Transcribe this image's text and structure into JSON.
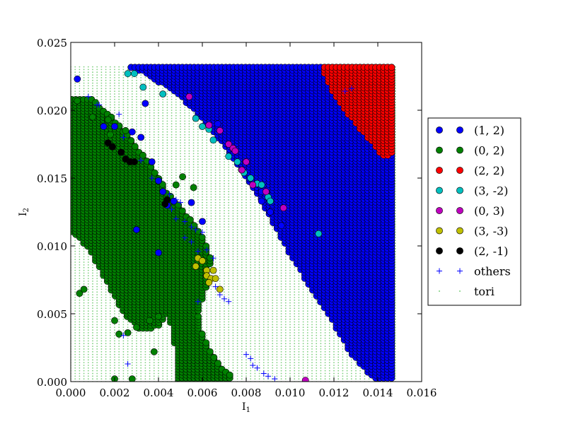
{
  "chart_data": {
    "type": "scatter",
    "title": "",
    "xlabel": "I",
    "xlabel_sub": "1",
    "ylabel": "I",
    "ylabel_sub": "2",
    "xlim": [
      0.0,
      0.016
    ],
    "ylim": [
      0.0,
      0.025
    ],
    "x_ticks": [
      "0.000",
      "0.002",
      "0.004",
      "0.006",
      "0.008",
      "0.010",
      "0.012",
      "0.014",
      "0.016"
    ],
    "y_ticks": [
      "0.000",
      "0.005",
      "0.010",
      "0.015",
      "0.020",
      "0.025"
    ],
    "grid": false,
    "legend_position": "outside-right",
    "colors": {
      "s12": "#0000ff",
      "s02": "#008000",
      "s22": "#ff0000",
      "s3m2": "#00bfbf",
      "s03": "#bf00bf",
      "s3m3": "#bfbf00",
      "s2m1": "#000000",
      "others": "#0000ff",
      "tori": "#7fd07f"
    },
    "tori_grid": {
      "x_step": 0.0002,
      "y_step": 0.0002,
      "x_max": 0.0148,
      "y_max": 0.0232
    },
    "series": [
      {
        "name": "(1, 2)",
        "key": "s12",
        "marker": "circle",
        "region": [
          [
            0.0027,
            0.0232
          ],
          [
            0.0147,
            0.0232
          ],
          [
            0.0147,
            0.0002
          ],
          [
            0.0138,
            0.0002
          ],
          [
            0.0128,
            0.002
          ],
          [
            0.0118,
            0.0048
          ],
          [
            0.0108,
            0.0072
          ],
          [
            0.0096,
            0.0105
          ],
          [
            0.0086,
            0.0135
          ],
          [
            0.0074,
            0.0165
          ],
          [
            0.0062,
            0.019
          ],
          [
            0.005,
            0.021
          ],
          [
            0.0036,
            0.0225
          ]
        ],
        "points": [
          [
            0.0003,
            0.0223
          ],
          [
            0.0034,
            0.0205
          ],
          [
            0.0028,
            0.0184
          ],
          [
            0.0032,
            0.018
          ],
          [
            0.0015,
            0.0188
          ],
          [
            0.0037,
            0.0162
          ],
          [
            0.004,
            0.0148
          ],
          [
            0.0042,
            0.014
          ],
          [
            0.0047,
            0.0133
          ],
          [
            0.0055,
            0.0132
          ],
          [
            0.006,
            0.0118
          ],
          [
            0.003,
            0.0112
          ],
          [
            0.004,
            0.0095
          ],
          [
            0.002,
            0.0188
          ],
          [
            0.0044,
            0.013
          ],
          [
            0.0087,
            0.014
          ],
          [
            0.0091,
            0.0125
          ],
          [
            0.0096,
            0.0115
          ],
          [
            0.0087,
            0.0133
          ],
          [
            0.0067,
            0.019
          ]
        ]
      },
      {
        "name": "(0, 2)",
        "key": "s02",
        "marker": "circle",
        "region": [
          [
            0.0,
            0.021
          ],
          [
            0.001,
            0.0208
          ],
          [
            0.0022,
            0.019
          ],
          [
            0.0034,
            0.0165
          ],
          [
            0.0044,
            0.014
          ],
          [
            0.0052,
            0.0125
          ],
          [
            0.006,
            0.0108
          ],
          [
            0.0064,
            0.009
          ],
          [
            0.0062,
            0.007
          ],
          [
            0.0058,
            0.005
          ],
          [
            0.006,
            0.0035
          ],
          [
            0.0064,
            0.0022
          ],
          [
            0.0068,
            0.0012
          ],
          [
            0.0074,
            0.0005
          ],
          [
            0.0072,
            0.0
          ],
          [
            0.0048,
            0.0
          ],
          [
            0.0048,
            0.002
          ],
          [
            0.0046,
            0.004
          ],
          [
            0.0044,
            0.005
          ],
          [
            0.004,
            0.004
          ],
          [
            0.0032,
            0.0038
          ],
          [
            0.0024,
            0.005
          ],
          [
            0.0016,
            0.0075
          ],
          [
            0.0008,
            0.0098
          ],
          [
            0.0004,
            0.0105
          ],
          [
            0.0,
            0.011
          ]
        ],
        "points": [
          [
            0.0003,
            0.0207
          ],
          [
            0.0017,
            0.0193
          ],
          [
            0.0025,
            0.0185
          ],
          [
            0.001,
            0.0195
          ],
          [
            0.0018,
            0.0182
          ],
          [
            0.0004,
            0.0065
          ],
          [
            0.0006,
            0.0068
          ],
          [
            0.002,
            0.0045
          ],
          [
            0.0022,
            0.0035
          ],
          [
            0.0026,
            0.0036
          ],
          [
            0.003,
            0.004
          ],
          [
            0.0036,
            0.0045
          ],
          [
            0.004,
            0.0048
          ],
          [
            0.0038,
            0.0022
          ],
          [
            0.002,
            0.0002
          ],
          [
            0.0028,
            0.0002
          ],
          [
            0.0051,
            0.0151
          ],
          [
            0.0056,
            0.0143
          ],
          [
            0.0048,
            0.0145
          ]
        ]
      },
      {
        "name": "(2, 2)",
        "key": "s22",
        "marker": "circle",
        "region": [
          [
            0.0114,
            0.0232
          ],
          [
            0.0147,
            0.0232
          ],
          [
            0.0147,
            0.0172
          ],
          [
            0.0146,
            0.0166
          ],
          [
            0.0142,
            0.0166
          ],
          [
            0.0138,
            0.0175
          ],
          [
            0.0132,
            0.0185
          ],
          [
            0.0126,
            0.0198
          ],
          [
            0.012,
            0.0212
          ]
        ],
        "points": []
      },
      {
        "name": "(3, -2)",
        "key": "s3m2",
        "marker": "circle",
        "points": [
          [
            0.0026,
            0.0227
          ],
          [
            0.0029,
            0.0227
          ],
          [
            0.0033,
            0.0217
          ],
          [
            0.0042,
            0.0212
          ],
          [
            0.0057,
            0.0194
          ],
          [
            0.006,
            0.0188
          ],
          [
            0.0063,
            0.0186
          ],
          [
            0.0065,
            0.0178
          ],
          [
            0.0072,
            0.0166
          ],
          [
            0.0076,
            0.0162
          ],
          [
            0.0079,
            0.0154
          ],
          [
            0.0082,
            0.015
          ],
          [
            0.0085,
            0.0146
          ],
          [
            0.0087,
            0.0145
          ],
          [
            0.009,
            0.0136
          ],
          [
            0.0091,
            0.0133
          ],
          [
            0.0113,
            0.0109
          ]
        ]
      },
      {
        "name": "(0, 3)",
        "key": "s03",
        "marker": "circle",
        "points": [
          [
            0.0054,
            0.021
          ],
          [
            0.0063,
            0.0189
          ],
          [
            0.0068,
            0.0185
          ],
          [
            0.0072,
            0.0175
          ],
          [
            0.0074,
            0.0172
          ],
          [
            0.0075,
            0.017
          ],
          [
            0.008,
            0.0162
          ],
          [
            0.0078,
            0.0156
          ],
          [
            0.0083,
            0.0145
          ],
          [
            0.0089,
            0.014
          ],
          [
            0.0097,
            0.0128
          ],
          [
            0.0107,
            0.0001
          ]
        ]
      },
      {
        "name": "(3, -3)",
        "key": "s3m3",
        "marker": "circle",
        "points": [
          [
            0.0058,
            0.0091
          ],
          [
            0.006,
            0.0089
          ],
          [
            0.0057,
            0.0085
          ],
          [
            0.0062,
            0.0082
          ],
          [
            0.0065,
            0.0082
          ],
          [
            0.0062,
            0.0078
          ],
          [
            0.0064,
            0.0076
          ],
          [
            0.0066,
            0.0076
          ],
          [
            0.0063,
            0.0073
          ],
          [
            0.0068,
            0.0068
          ]
        ]
      },
      {
        "name": "(2, -1)",
        "key": "s2m1",
        "marker": "circle",
        "points": [
          [
            0.0017,
            0.0176
          ],
          [
            0.0019,
            0.0173
          ],
          [
            0.0023,
            0.0169
          ],
          [
            0.0025,
            0.0164
          ],
          [
            0.0027,
            0.0162
          ],
          [
            0.0029,
            0.0162
          ],
          [
            0.0044,
            0.0134
          ],
          [
            0.0043,
            0.0131
          ]
        ]
      },
      {
        "name": "others",
        "key": "others",
        "marker": "plus",
        "points": [
          [
            0.0008,
            0.021
          ],
          [
            0.0012,
            0.0204
          ],
          [
            0.0013,
            0.0204
          ],
          [
            0.0022,
            0.0197
          ],
          [
            0.0024,
            0.018
          ],
          [
            0.0032,
            0.0163
          ],
          [
            0.0037,
            0.015
          ],
          [
            0.0045,
            0.0138
          ],
          [
            0.0048,
            0.0134
          ],
          [
            0.005,
            0.0132
          ],
          [
            0.0046,
            0.0127
          ],
          [
            0.0048,
            0.012
          ],
          [
            0.0052,
            0.0118
          ],
          [
            0.0055,
            0.0114
          ],
          [
            0.0057,
            0.0112
          ],
          [
            0.006,
            0.011
          ],
          [
            0.0052,
            0.0106
          ],
          [
            0.0055,
            0.0103
          ],
          [
            0.0058,
            0.0096
          ],
          [
            0.0062,
            0.0097
          ],
          [
            0.0065,
            0.0091
          ],
          [
            0.0066,
            0.007
          ],
          [
            0.0068,
            0.0064
          ],
          [
            0.007,
            0.0061
          ],
          [
            0.0072,
            0.0059
          ],
          [
            0.0058,
            0.0059
          ],
          [
            0.0024,
            0.0034
          ],
          [
            0.0026,
            0.0013
          ],
          [
            0.008,
            0.002
          ],
          [
            0.0082,
            0.0017
          ],
          [
            0.0083,
            0.0012
          ],
          [
            0.0085,
            0.001
          ],
          [
            0.0088,
            0.0006
          ],
          [
            0.009,
            0.0004
          ],
          [
            0.0093,
            0.0002
          ],
          [
            0.0128,
            0.0216
          ],
          [
            0.0125,
            0.0214
          ]
        ]
      },
      {
        "name": "tori",
        "key": "tori",
        "marker": "dot",
        "points": []
      }
    ]
  }
}
